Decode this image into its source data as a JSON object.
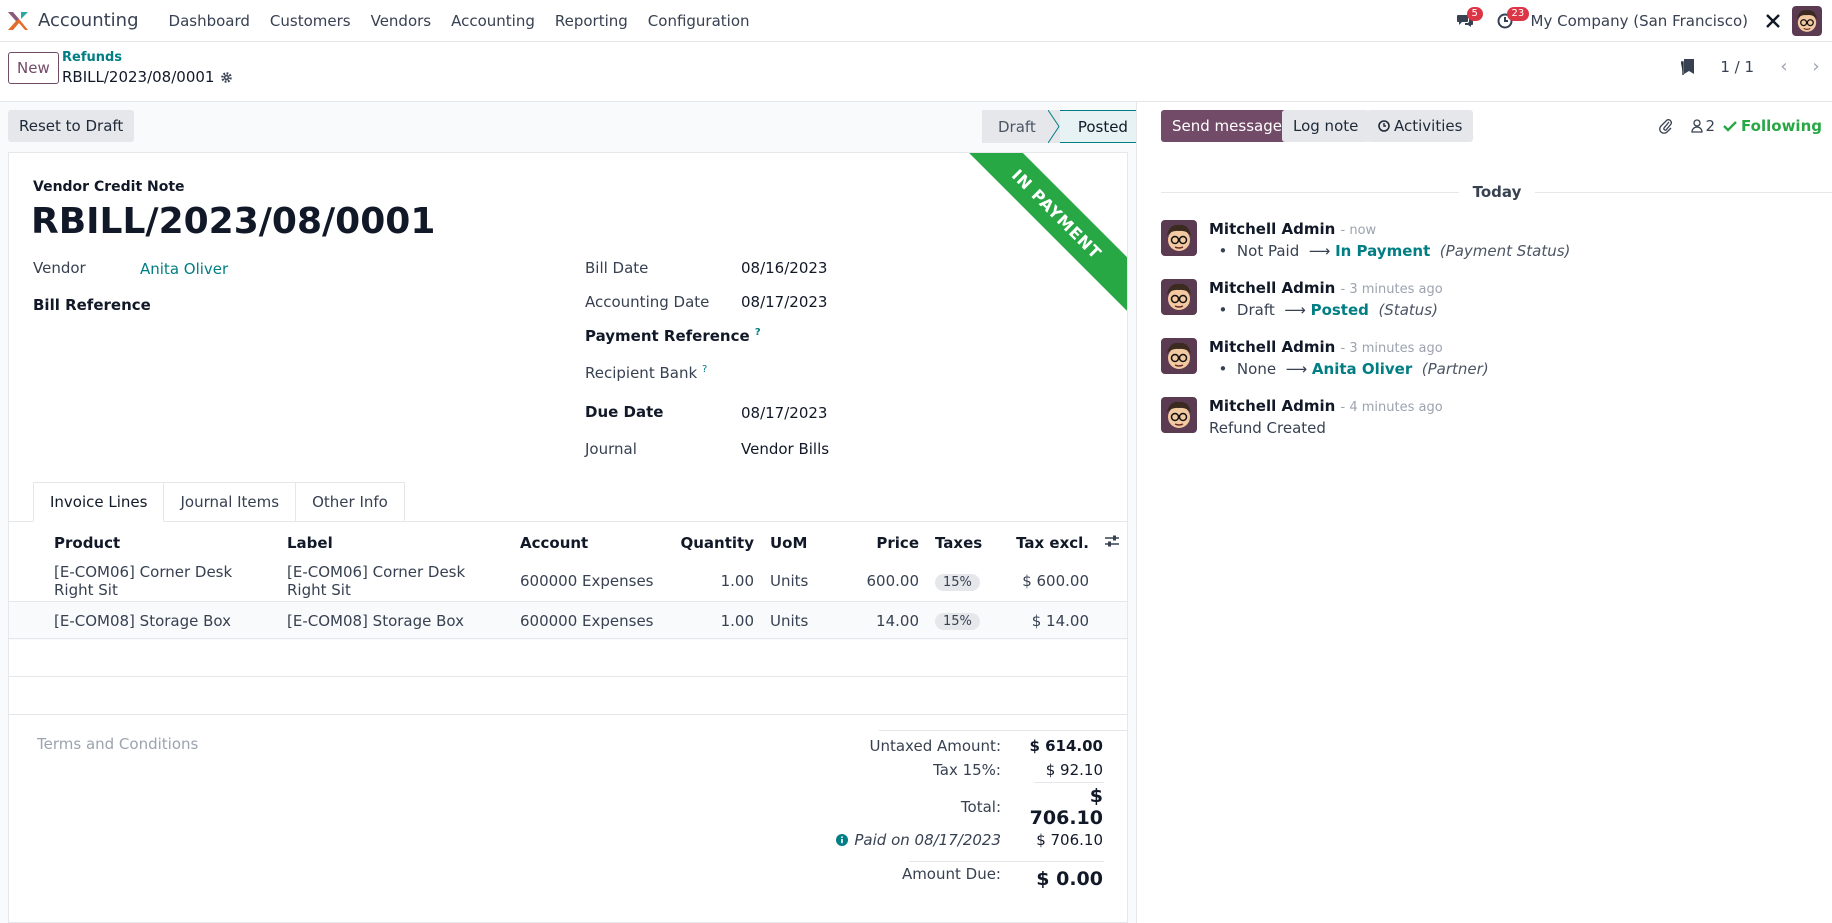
{
  "nav": {
    "app_name": "Accounting",
    "menu": [
      "Dashboard",
      "Customers",
      "Vendors",
      "Accounting",
      "Reporting",
      "Configuration"
    ],
    "messages_badge": "5",
    "activities_badge": "23",
    "company": "My Company (San Francisco)"
  },
  "control": {
    "new_label": "New",
    "breadcrumb_parent": "Refunds",
    "breadcrumb_current": "RBILL/2023/08/0001",
    "pager": "1 / 1"
  },
  "statusbar": {
    "reset_label": "Reset to Draft",
    "stages": [
      "Draft",
      "Posted"
    ],
    "active_stage": "Posted"
  },
  "form": {
    "ribbon": "IN PAYMENT",
    "doc_type": "Vendor Credit Note",
    "doc_name": "RBILL/2023/08/0001",
    "vendor_label": "Vendor",
    "vendor_value": "Anita Oliver",
    "bill_ref_label": "Bill Reference",
    "bill_date_label": "Bill Date",
    "bill_date": "08/16/2023",
    "acc_date_label": "Accounting Date",
    "acc_date": "08/17/2023",
    "pay_ref_label": "Payment Reference",
    "recipient_bank_label": "Recipient Bank",
    "due_date_label": "Due Date",
    "due_date": "08/17/2023",
    "journal_label": "Journal",
    "journal": "Vendor Bills",
    "help_mark": "?"
  },
  "tabs": [
    "Invoice Lines",
    "Journal Items",
    "Other Info"
  ],
  "lines": {
    "headers": {
      "product": "Product",
      "label": "Label",
      "account": "Account",
      "quantity": "Quantity",
      "uom": "UoM",
      "price": "Price",
      "taxes": "Taxes",
      "tax_excl": "Tax excl."
    },
    "rows": [
      {
        "product": "[E-COM06] Corner Desk Right Sit",
        "label": "[E-COM06] Corner Desk Right Sit",
        "account": "600000 Expenses",
        "quantity": "1.00",
        "uom": "Units",
        "price": "600.00",
        "tax": "15%",
        "subtotal": "$ 600.00"
      },
      {
        "product": "[E-COM08] Storage Box",
        "label": "[E-COM08] Storage Box",
        "account": "600000 Expenses",
        "quantity": "1.00",
        "uom": "Units",
        "price": "14.00",
        "tax": "15%",
        "subtotal": "$ 14.00"
      }
    ]
  },
  "totals": {
    "terms": "Terms and Conditions",
    "untaxed_label": "Untaxed Amount:",
    "untaxed": "$ 614.00",
    "tax_label": "Tax 15%:",
    "tax": "$ 92.10",
    "total_label": "Total:",
    "total": "$ 706.10",
    "paid_label": "Paid on 08/17/2023",
    "paid": "$ 706.10",
    "due_label": "Amount Due:",
    "due": "$ 0.00"
  },
  "chatter": {
    "send_label": "Send message",
    "log_label": "Log note",
    "activities_label": "Activities",
    "followers": "2",
    "following_label": "Following",
    "today": "Today",
    "messages": [
      {
        "author": "Mitchell Admin",
        "when": "- now",
        "old": "Not Paid",
        "new": "In Payment",
        "field": "(Payment Status)"
      },
      {
        "author": "Mitchell Admin",
        "when": "- 3 minutes ago",
        "old": "Draft",
        "new": "Posted",
        "field": "(Status)"
      },
      {
        "author": "Mitchell Admin",
        "when": "- 3 minutes ago",
        "old": "None",
        "new": "Anita Oliver",
        "field": "(Partner)"
      },
      {
        "author": "Mitchell Admin",
        "when": "- 4 minutes ago",
        "text": "Refund Created"
      }
    ]
  },
  "colors": {
    "brand": "#714b67",
    "link": "#017e84",
    "success": "#28a745",
    "badge": "#dc3545"
  }
}
